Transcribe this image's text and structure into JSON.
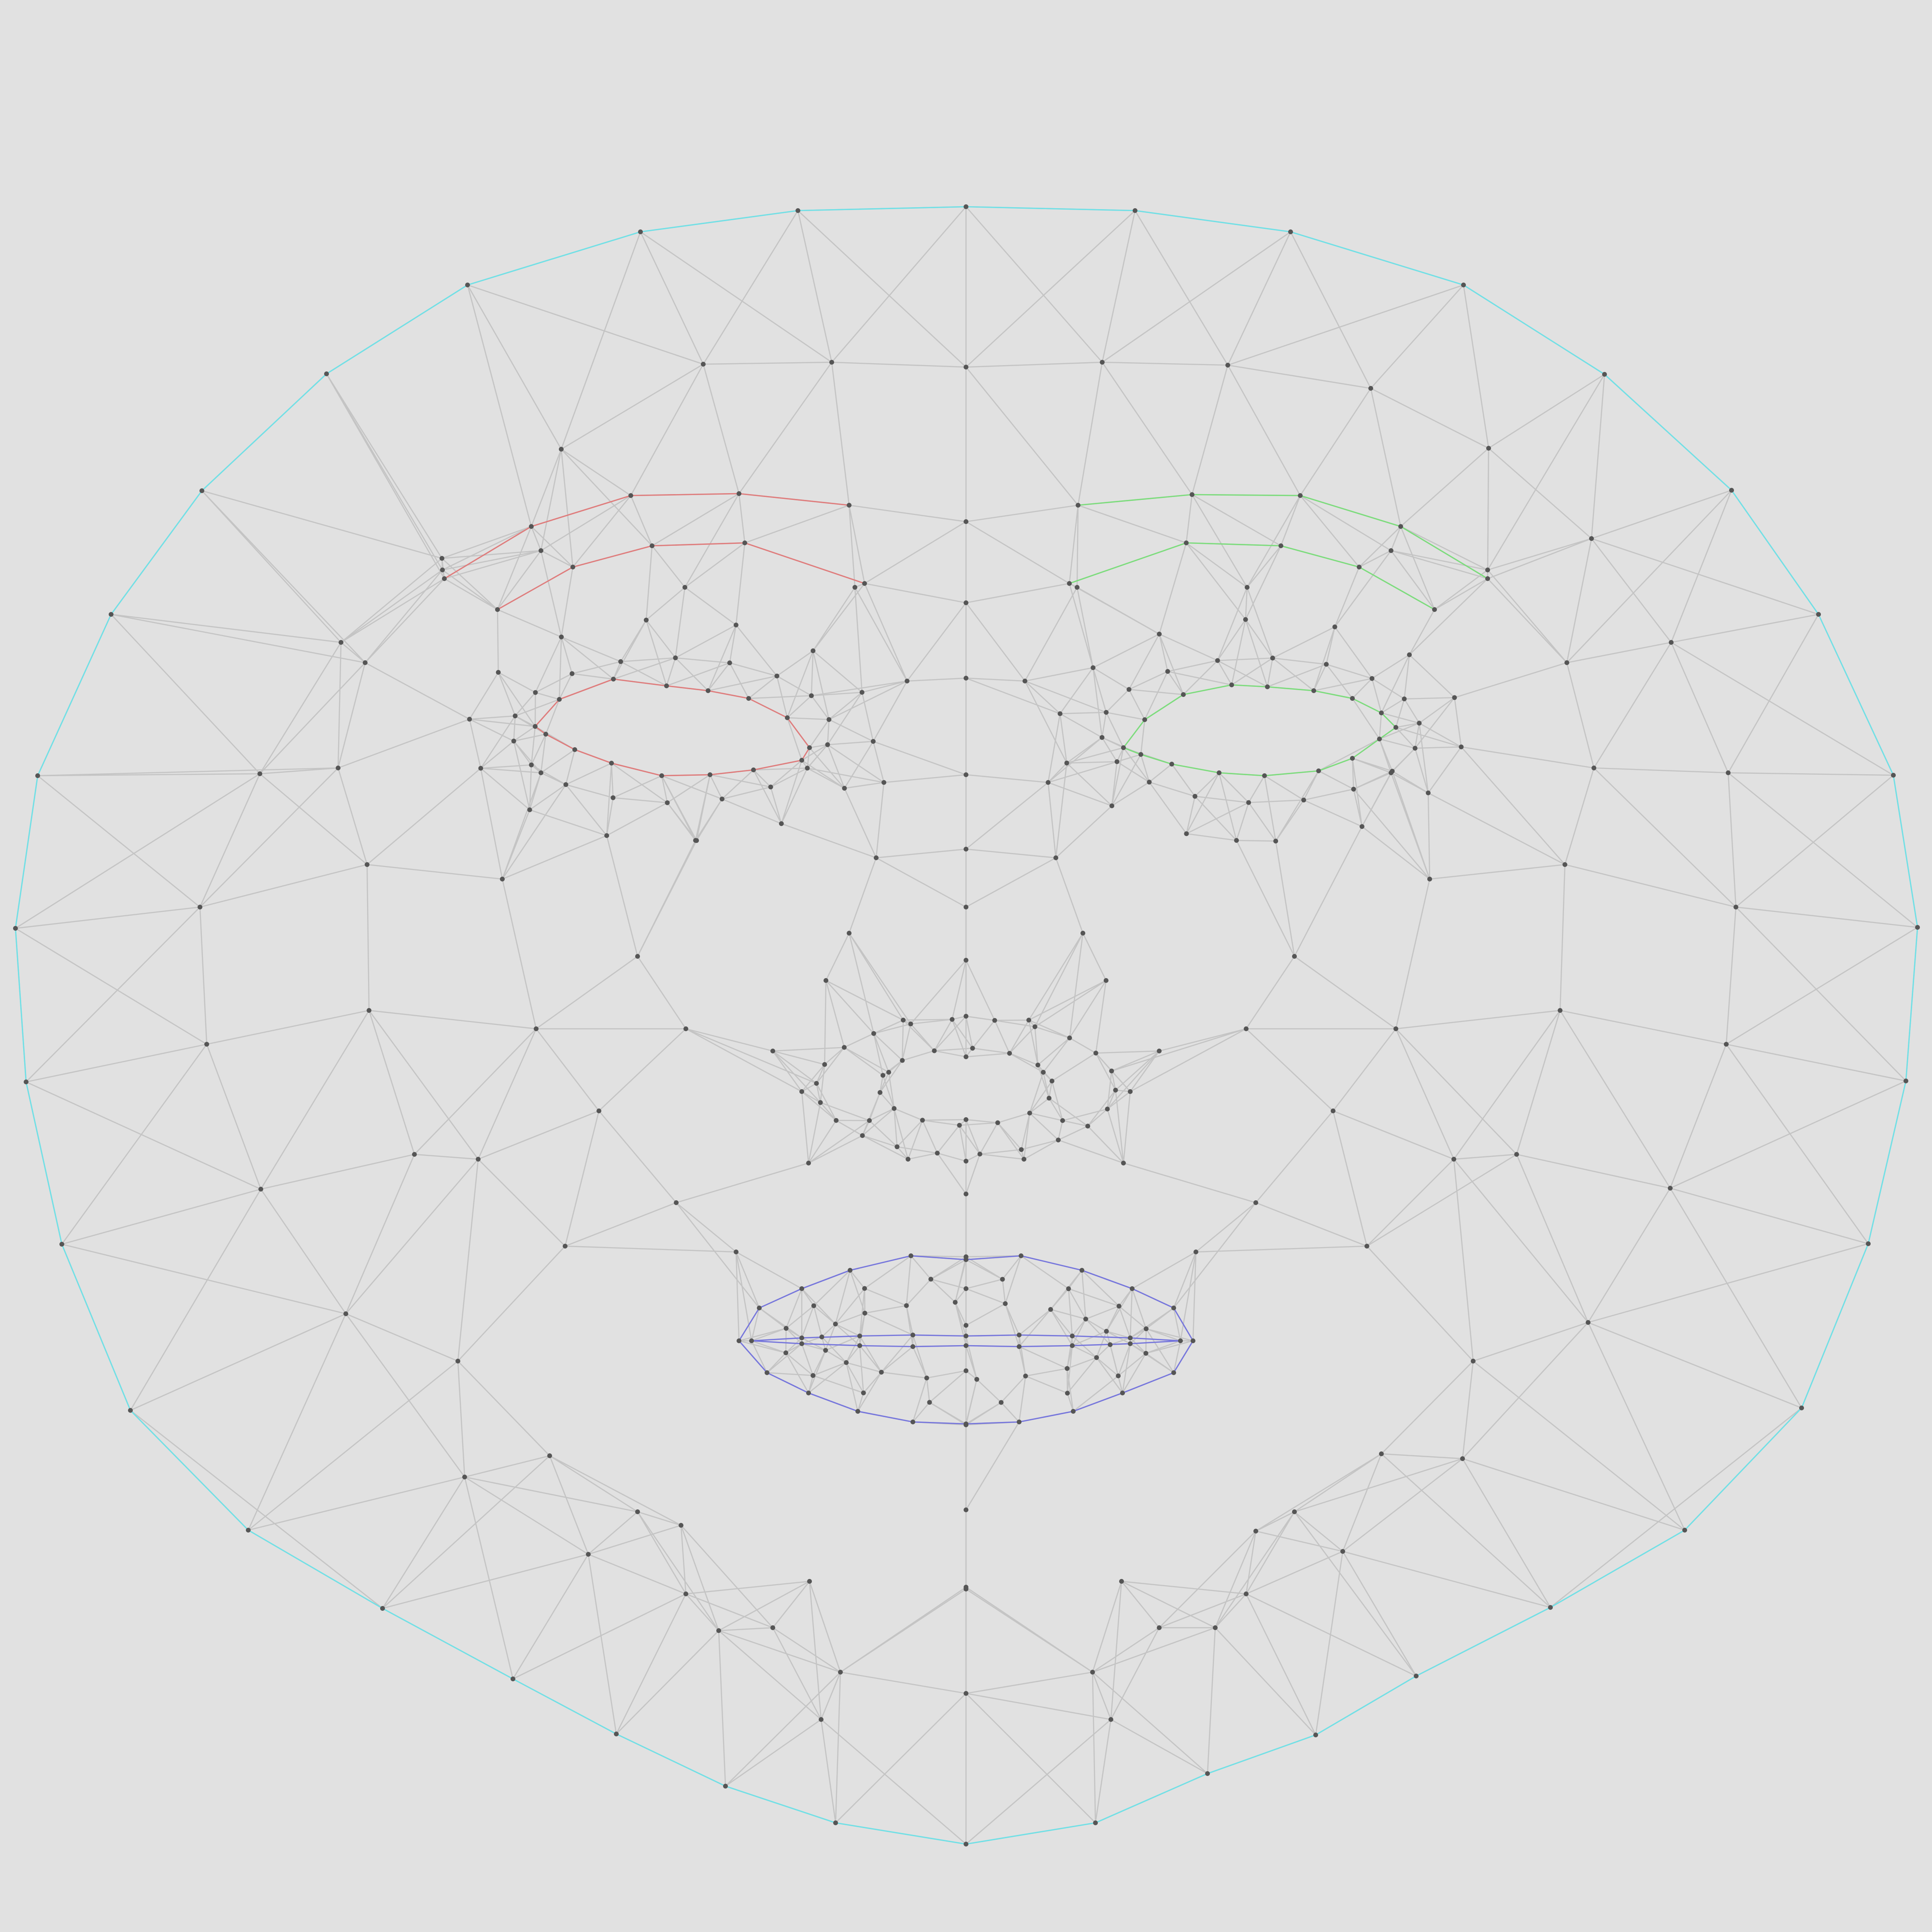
{
  "diagram": {
    "kind": "face-mesh-triangulation",
    "background": "#e1e1e1",
    "colors": {
      "mesh": "#c4c4c4",
      "face_oval": "#6fe0e6",
      "left_eye": "#df7b7b",
      "right_eye": "#7bdc7b",
      "lips": "#7575dc",
      "node": "#555555",
      "label": "#1e1e1e"
    }
  }
}
